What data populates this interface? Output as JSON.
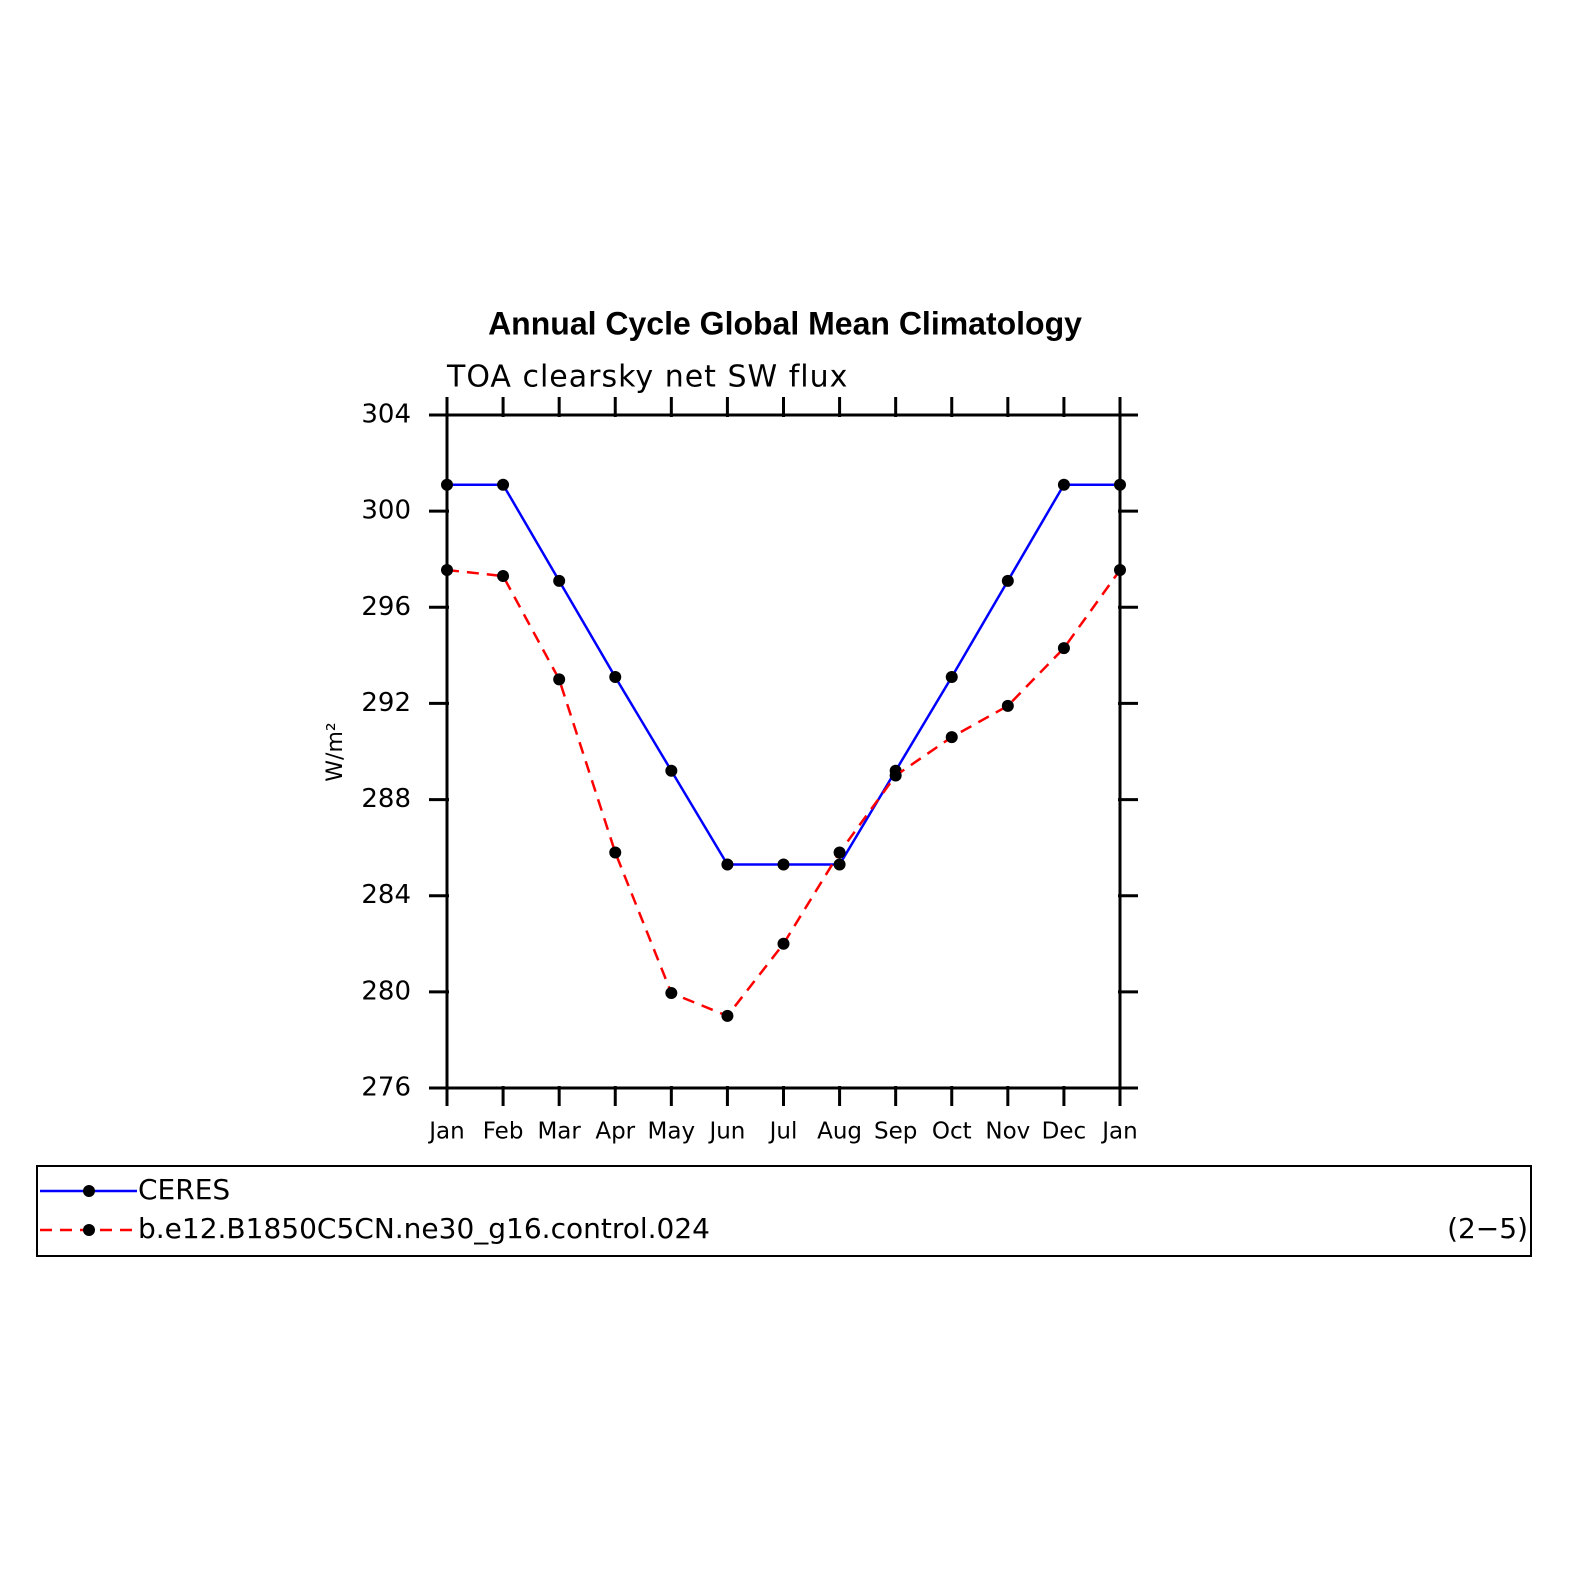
{
  "chart_data": {
    "type": "line",
    "title": "Annual Cycle Global Mean Climatology",
    "subtitle": "TOA clearsky net SW flux",
    "y_label": "W/m²",
    "categories": [
      "Jan",
      "Feb",
      "Mar",
      "Apr",
      "May",
      "Jun",
      "Jul",
      "Aug",
      "Sep",
      "Oct",
      "Nov",
      "Dec",
      "Jan"
    ],
    "series": [
      {
        "name": "CERES",
        "color": "#0000ff",
        "line_style": "solid",
        "values": [
          301.1,
          301.1,
          297.1,
          293.1,
          289.2,
          285.3,
          285.3,
          285.3,
          289.2,
          293.1,
          297.1,
          301.1,
          301.1
        ]
      },
      {
        "name": "b.e12.B1850C5CN.ne30_g16.control.024",
        "color": "#ff0000",
        "line_style": "dashed",
        "values": [
          297.55,
          297.3,
          293.0,
          285.8,
          279.95,
          279.0,
          282.0,
          285.8,
          289.0,
          290.6,
          291.9,
          294.3,
          297.55
        ]
      }
    ],
    "marker_color": "#000000",
    "ylim": [
      276,
      304
    ],
    "yticks": [
      276,
      280,
      284,
      288,
      292,
      296,
      300,
      304
    ],
    "legend_note": "(2−5)",
    "legend_position": "bottom"
  }
}
